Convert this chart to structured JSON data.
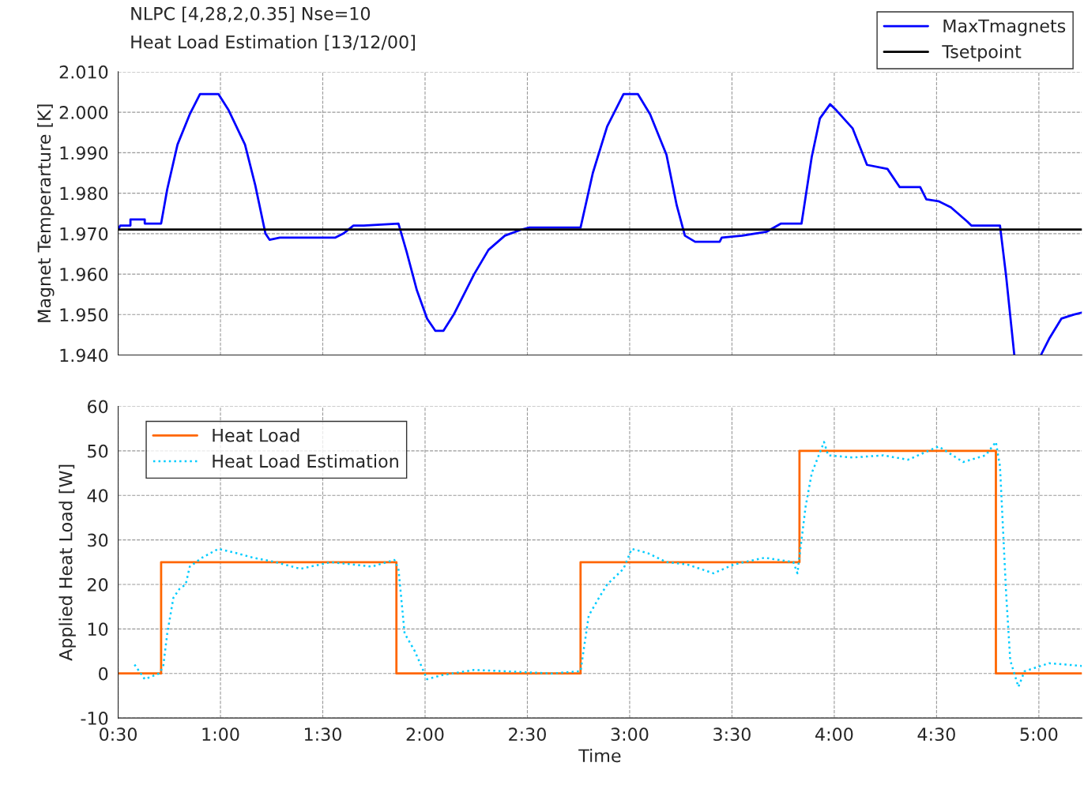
{
  "chart_data": [
    {
      "type": "line",
      "title": "NLPC [4,28,2,0.35] Nse=10",
      "subtitle": "Heat Load Estimation [13/12/00]",
      "ylabel": "Magnet Temperarture [K]",
      "xlim": [
        0.5,
        5.21
      ],
      "xticks": [
        0.5,
        1,
        1.5,
        2,
        2.5,
        3,
        3.5,
        4,
        4.5,
        5
      ],
      "ylim": [
        1.94,
        2.01
      ],
      "yticks": [
        {
          "value": 1.94,
          "label": "1.940"
        },
        {
          "value": 1.95,
          "label": "1.950"
        },
        {
          "value": 1.96,
          "label": "1.960"
        },
        {
          "value": 1.97,
          "label": "1.970"
        },
        {
          "value": 1.98,
          "label": "1.980"
        },
        {
          "value": 1.99,
          "label": "1.990"
        },
        {
          "value": 2.0,
          "label": "2.000"
        },
        {
          "value": 2.01,
          "label": "2.010"
        }
      ],
      "tick_labels": "y",
      "grid": true,
      "legend": "top right",
      "line_style": "solid",
      "marker": "none",
      "series": [
        {
          "name": "MaxTmagnets",
          "color": "#0000ff",
          "x": [
            0.5,
            0.51,
            0.56,
            0.56,
            0.63,
            0.63,
            0.71,
            0.74,
            0.79,
            0.85,
            0.9,
            0.99,
            1.04,
            1.12,
            1.17,
            1.22,
            1.24,
            1.29,
            1.56,
            1.6,
            1.65,
            1.7,
            1.87,
            1.91,
            1.96,
            2.01,
            2.05,
            2.09,
            2.14,
            2.24,
            2.31,
            2.39,
            2.47,
            2.51,
            2.76,
            2.82,
            2.89,
            2.97,
            3.04,
            3.1,
            3.18,
            3.23,
            3.27,
            3.32,
            3.44,
            3.45,
            3.55,
            3.67,
            3.74,
            3.84,
            3.89,
            3.93,
            3.98,
            4.01,
            4.09,
            4.16,
            4.26,
            4.32,
            4.42,
            4.45,
            4.51,
            4.57,
            4.65,
            4.67,
            4.81,
            4.84,
            4.88,
            4.95,
            5.01,
            5.05,
            5.11,
            5.17,
            5.21
          ],
          "values": [
            1.971,
            1.972,
            1.972,
            1.9735,
            1.9735,
            1.9725,
            1.9725,
            1.981,
            1.992,
            1.9995,
            2.0045,
            2.0045,
            2.0005,
            1.992,
            1.982,
            1.97,
            1.9685,
            1.969,
            1.969,
            1.97,
            1.972,
            1.972,
            1.9725,
            1.9655,
            1.956,
            1.949,
            1.946,
            1.946,
            1.95,
            1.96,
            1.966,
            1.9695,
            1.971,
            1.9715,
            1.9715,
            1.985,
            1.9965,
            2.0045,
            2.0045,
            1.9995,
            1.9895,
            1.977,
            1.9695,
            1.968,
            1.968,
            1.969,
            1.9695,
            1.9705,
            1.9725,
            1.9725,
            1.989,
            1.9985,
            2.002,
            2.0005,
            1.996,
            1.987,
            1.986,
            1.9815,
            1.9815,
            1.9785,
            1.978,
            1.9765,
            1.973,
            1.972,
            1.972,
            1.9595,
            1.94,
            null,
            1.94,
            1.944,
            1.949,
            1.95,
            1.9505
          ]
        },
        {
          "name": "Tsetpoint",
          "color": "#000000",
          "x": [
            0.5,
            5.21
          ],
          "values": [
            1.971,
            1.971
          ]
        }
      ]
    },
    {
      "type": "line",
      "xlabel": "Time",
      "ylabel": "Applied Heat Load [W]",
      "xlim": [
        0.5,
        5.21
      ],
      "xticks": [
        {
          "value": 0.5,
          "label": "0:30"
        },
        {
          "value": 1,
          "label": "1:00"
        },
        {
          "value": 1.5,
          "label": "1:30"
        },
        {
          "value": 2,
          "label": "2:00"
        },
        {
          "value": 2.5,
          "label": "2:30"
        },
        {
          "value": 3,
          "label": "3:00"
        },
        {
          "value": 3.5,
          "label": "3:30"
        },
        {
          "value": 4,
          "label": "4:00"
        },
        {
          "value": 4.5,
          "label": "4:30"
        },
        {
          "value": 5,
          "label": "5:00"
        }
      ],
      "ylim": [
        -10,
        60
      ],
      "yticks": [
        -10,
        0,
        10,
        20,
        30,
        40,
        50,
        60
      ],
      "grid": true,
      "legend": "top left",
      "marker": "none",
      "series": [
        {
          "name": "Heat Load",
          "type": "step",
          "color": "#ff6600",
          "line_style": "solid",
          "x": [
            0.5,
            0.71,
            1.86,
            2.76,
            3.83,
            4.79,
            5.21
          ],
          "values": [
            0,
            25,
            0,
            25,
            50,
            0,
            0
          ]
        },
        {
          "name": "Heat Load Estimation",
          "color": "#00ccff",
          "line_style": "dotted",
          "x": [
            0.58,
            0.63,
            0.7,
            0.72,
            0.74,
            0.77,
            0.8,
            0.83,
            0.85,
            0.91,
            0.99,
            1.08,
            1.16,
            1.27,
            1.39,
            1.54,
            1.74,
            1.85,
            1.87,
            1.9,
            1.95,
            2.01,
            2.08,
            2.24,
            2.39,
            2.62,
            2.76,
            2.8,
            2.85,
            2.89,
            2.97,
            3.01,
            3.09,
            3.18,
            3.28,
            3.41,
            3.51,
            3.66,
            3.8,
            3.82,
            3.86,
            3.89,
            3.95,
            3.97,
            4.09,
            4.24,
            4.36,
            4.51,
            4.63,
            4.74,
            4.79,
            4.81,
            4.84,
            4.86,
            4.9,
            4.93,
            5.05,
            5.21
          ],
          "values": [
            2,
            -1.3,
            0,
            1.5,
            9,
            17,
            19,
            20,
            24,
            26,
            28,
            27,
            26,
            25,
            23.5,
            25,
            24,
            25.5,
            23.5,
            9,
            5,
            -1.3,
            -0.4,
            0.8,
            0.5,
            0,
            0.5,
            13,
            17,
            20,
            23.5,
            28,
            27,
            25,
            24.5,
            22.5,
            24.5,
            26,
            25,
            22.5,
            37.5,
            45,
            52,
            49,
            48.5,
            49,
            48,
            51,
            47.5,
            49,
            52,
            46.5,
            18,
            3,
            -3,
            0.5,
            2.3,
            1.7
          ]
        }
      ]
    }
  ]
}
